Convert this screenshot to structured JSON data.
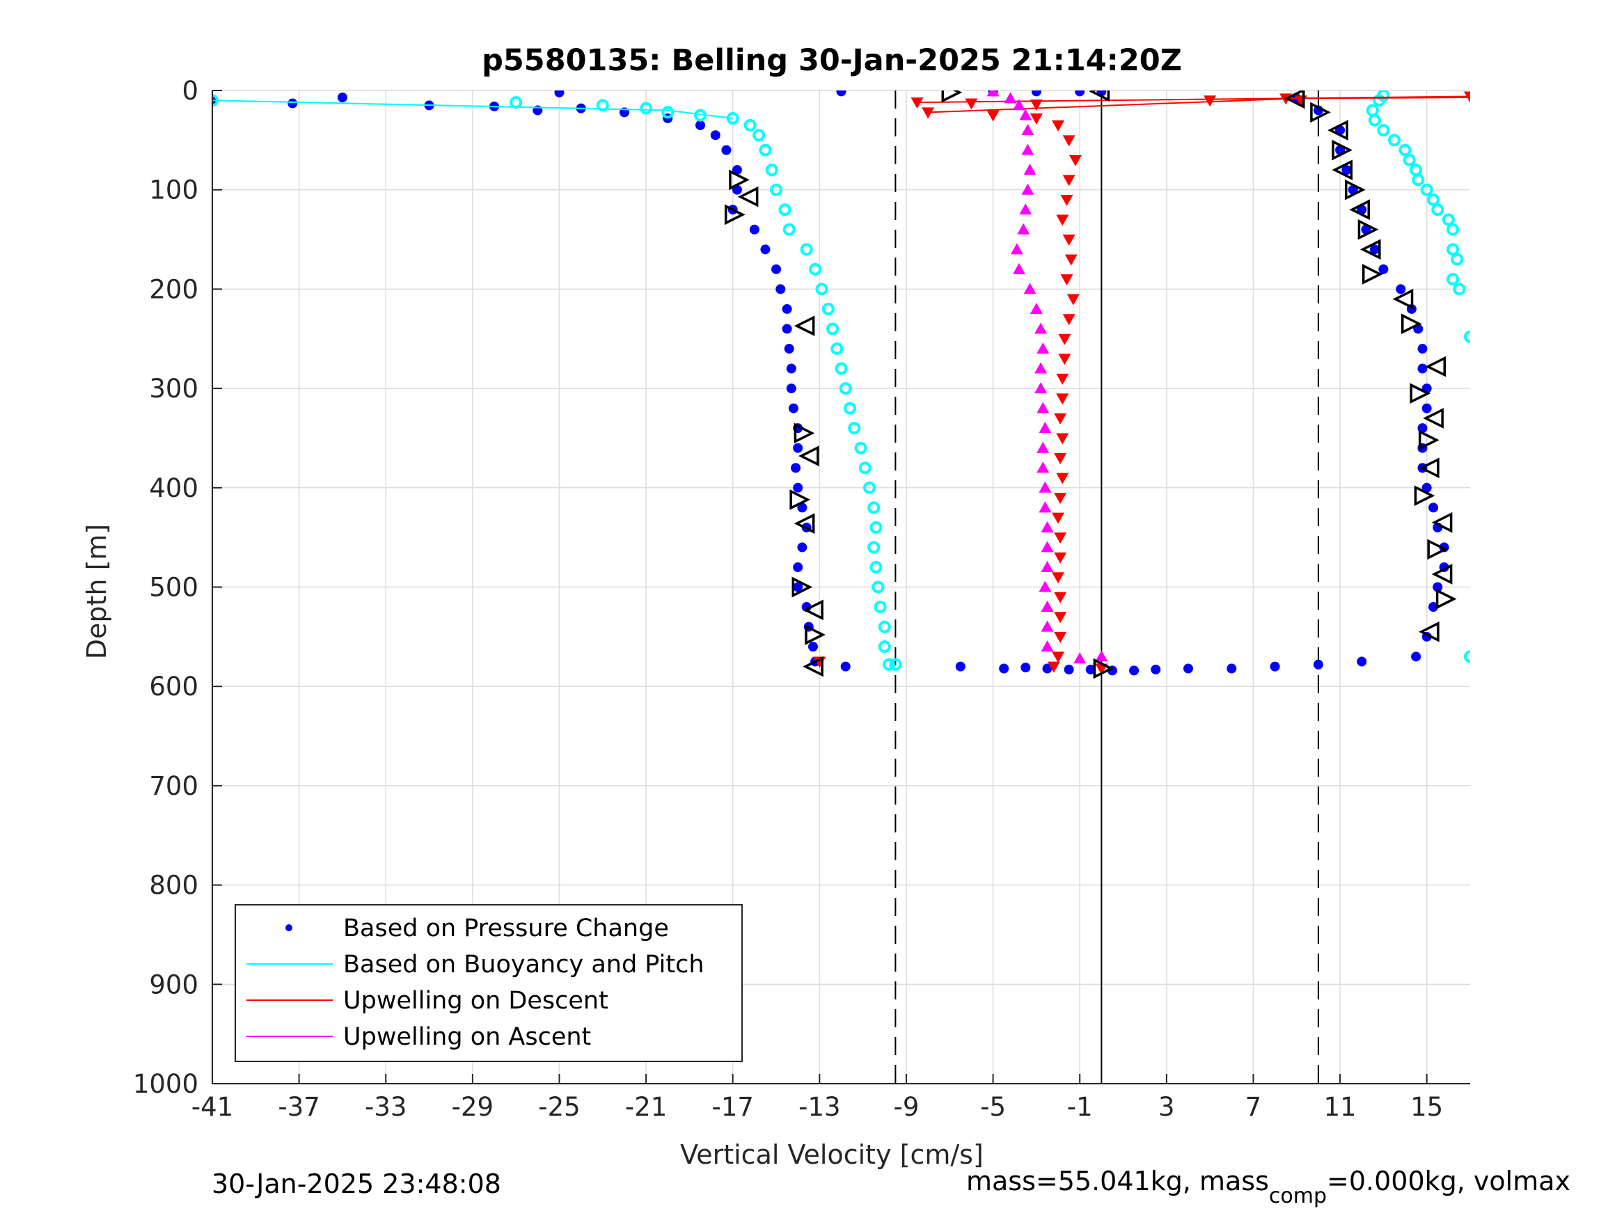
{
  "chart_data": {
    "type": "scatter",
    "title": "p5580135: Belling 30-Jan-2025 21:14:20Z",
    "xlabel": "Vertical Velocity [cm/s]",
    "ylabel": "Depth [m]",
    "xlim": [
      -41,
      17
    ],
    "ylim": [
      0,
      1000
    ],
    "y_reversed": true,
    "grid": true,
    "x_ticks": [
      "-41",
      "-37",
      "-33",
      "-29",
      "-25",
      "-21",
      "-17",
      "-13",
      "-9",
      "-5",
      "-1",
      "3",
      "7",
      "11",
      "15"
    ],
    "y_ticks": [
      "0",
      "100",
      "200",
      "300",
      "400",
      "500",
      "600",
      "700",
      "800",
      "900",
      "1000"
    ],
    "legend": {
      "position": "bottom-left",
      "entries": [
        {
          "label": "Based on Pressure Change",
          "color": "#0000ff",
          "marker": "dot"
        },
        {
          "label": "Based on Buoyancy and Pitch",
          "color": "#00ffff",
          "marker": "line"
        },
        {
          "label": "Upwelling on Descent",
          "color": "#ff0000",
          "marker": "line"
        },
        {
          "label": "Upwelling on Ascent",
          "color": "#ff00ff",
          "marker": "line"
        }
      ]
    },
    "reference_lines": {
      "dashed_x": [
        -9.5,
        10
      ],
      "solid_x": [
        0
      ]
    },
    "series": [
      {
        "name": "Based on Pressure Change (descent)",
        "color": "#0000ff",
        "points": [
          [
            -41,
            10
          ],
          [
            -37.3,
            13
          ],
          [
            -35,
            7
          ],
          [
            -31,
            15
          ],
          [
            -25,
            2
          ],
          [
            -28,
            16
          ],
          [
            -26,
            20
          ],
          [
            -24,
            18
          ],
          [
            -22,
            22
          ],
          [
            -20,
            28
          ],
          [
            -18.5,
            35
          ],
          [
            -17.8,
            45
          ],
          [
            -17.3,
            60
          ],
          [
            -16.8,
            80
          ],
          [
            -16.8,
            100
          ],
          [
            -17,
            120
          ],
          [
            -16,
            140
          ],
          [
            -15.5,
            160
          ],
          [
            -15,
            180
          ],
          [
            -14.8,
            200
          ],
          [
            -14.5,
            220
          ],
          [
            -14.5,
            240
          ],
          [
            -14.4,
            260
          ],
          [
            -14.3,
            280
          ],
          [
            -14.3,
            300
          ],
          [
            -14.2,
            320
          ],
          [
            -14,
            340
          ],
          [
            -14,
            360
          ],
          [
            -14.1,
            380
          ],
          [
            -14,
            400
          ],
          [
            -13.8,
            420
          ],
          [
            -13.6,
            440
          ],
          [
            -13.8,
            460
          ],
          [
            -14,
            480
          ],
          [
            -14,
            500
          ],
          [
            -13.6,
            520
          ],
          [
            -13.5,
            540
          ],
          [
            -13.3,
            560
          ],
          [
            -13.2,
            575
          ],
          [
            -11.8,
            580
          ]
        ]
      },
      {
        "name": "Based on Pressure Change (ascent)",
        "color": "#0000ff",
        "points": [
          [
            14.5,
            570
          ],
          [
            12,
            575
          ],
          [
            10,
            578
          ],
          [
            8,
            580
          ],
          [
            6,
            582
          ],
          [
            4,
            582
          ],
          [
            2.5,
            583
          ],
          [
            1.5,
            584
          ],
          [
            0.5,
            584
          ],
          [
            -0.5,
            583
          ],
          [
            -1.5,
            583
          ],
          [
            -2.5,
            582
          ],
          [
            -3.5,
            581
          ],
          [
            -4.5,
            582
          ],
          [
            -6.5,
            580
          ],
          [
            15,
            550
          ],
          [
            15.3,
            520
          ],
          [
            15.5,
            500
          ],
          [
            15.8,
            480
          ],
          [
            15.8,
            460
          ],
          [
            15.5,
            440
          ],
          [
            15.3,
            420
          ],
          [
            15,
            400
          ],
          [
            14.8,
            380
          ],
          [
            14.8,
            360
          ],
          [
            14.8,
            340
          ],
          [
            15,
            320
          ],
          [
            15,
            300
          ],
          [
            14.8,
            280
          ],
          [
            14.8,
            260
          ],
          [
            14.6,
            240
          ],
          [
            14.3,
            220
          ],
          [
            13.8,
            200
          ],
          [
            13,
            180
          ],
          [
            12.6,
            160
          ],
          [
            12.2,
            140
          ],
          [
            12,
            120
          ],
          [
            11.6,
            100
          ],
          [
            11.3,
            80
          ],
          [
            11,
            60
          ],
          [
            11,
            40
          ],
          [
            10,
            20
          ],
          [
            9,
            8
          ],
          [
            0,
            1
          ],
          [
            -1,
            1
          ],
          [
            -3,
            1
          ],
          [
            -5,
            1
          ],
          [
            -12,
            1
          ]
        ]
      },
      {
        "name": "Based on Buoyancy and Pitch (descent)",
        "color": "#00ffff",
        "points": [
          [
            -41,
            10
          ],
          [
            -27,
            12
          ],
          [
            -23,
            15
          ],
          [
            -21,
            18
          ],
          [
            -20,
            22
          ],
          [
            -18.5,
            25
          ],
          [
            -17,
            28
          ],
          [
            -16.2,
            35
          ],
          [
            -15.8,
            45
          ],
          [
            -15.5,
            60
          ],
          [
            -15.2,
            80
          ],
          [
            -15,
            100
          ],
          [
            -14.6,
            120
          ],
          [
            -14.4,
            140
          ],
          [
            -13.6,
            160
          ],
          [
            -13.2,
            180
          ],
          [
            -12.9,
            200
          ],
          [
            -12.6,
            220
          ],
          [
            -12.4,
            240
          ],
          [
            -12.2,
            260
          ],
          [
            -12,
            280
          ],
          [
            -11.8,
            300
          ],
          [
            -11.6,
            320
          ],
          [
            -11.4,
            340
          ],
          [
            -11.1,
            360
          ],
          [
            -10.9,
            380
          ],
          [
            -10.7,
            400
          ],
          [
            -10.5,
            420
          ],
          [
            -10.4,
            440
          ],
          [
            -10.5,
            460
          ],
          [
            -10.4,
            480
          ],
          [
            -10.3,
            500
          ],
          [
            -10.2,
            520
          ],
          [
            -10,
            540
          ],
          [
            -10,
            560
          ],
          [
            -9.8,
            578
          ]
        ]
      },
      {
        "name": "Based on Buoyancy and Pitch (ascent)",
        "color": "#00ffff",
        "points": [
          [
            17,
            570
          ],
          [
            -9.5,
            578
          ],
          [
            13,
            5
          ],
          [
            12.8,
            10
          ],
          [
            12.5,
            20
          ],
          [
            12.6,
            30
          ],
          [
            13,
            40
          ],
          [
            13.5,
            50
          ],
          [
            14,
            60
          ],
          [
            14.2,
            70
          ],
          [
            14.5,
            80
          ],
          [
            14.6,
            90
          ],
          [
            15,
            100
          ],
          [
            15.3,
            110
          ],
          [
            15.5,
            120
          ],
          [
            16,
            130
          ],
          [
            16.2,
            140
          ],
          [
            16.2,
            160
          ],
          [
            16.4,
            170
          ],
          [
            16.2,
            190
          ],
          [
            16.5,
            200
          ],
          [
            17,
            248
          ]
        ]
      },
      {
        "name": "Upwelling on Descent",
        "color": "#ff0000",
        "points": [
          [
            -8.5,
            12
          ],
          [
            -6,
            13
          ],
          [
            -3,
            14
          ],
          [
            5,
            10
          ],
          [
            8.5,
            8
          ],
          [
            17,
            6
          ],
          [
            -8,
            22
          ],
          [
            -5,
            25
          ],
          [
            -3,
            28
          ],
          [
            -2,
            35
          ],
          [
            -1.5,
            50
          ],
          [
            -1.2,
            70
          ],
          [
            -1.5,
            90
          ],
          [
            -1.6,
            110
          ],
          [
            -1.8,
            130
          ],
          [
            -1.5,
            150
          ],
          [
            -1.4,
            170
          ],
          [
            -1.6,
            190
          ],
          [
            -1.3,
            210
          ],
          [
            -1.5,
            230
          ],
          [
            -1.7,
            250
          ],
          [
            -1.7,
            270
          ],
          [
            -1.8,
            290
          ],
          [
            -1.8,
            310
          ],
          [
            -1.9,
            330
          ],
          [
            -1.8,
            350
          ],
          [
            -1.9,
            370
          ],
          [
            -1.8,
            390
          ],
          [
            -1.9,
            410
          ],
          [
            -2,
            430
          ],
          [
            -1.9,
            450
          ],
          [
            -1.9,
            470
          ],
          [
            -2,
            490
          ],
          [
            -1.9,
            510
          ],
          [
            -1.9,
            530
          ],
          [
            -1.9,
            550
          ],
          [
            -2,
            570
          ],
          [
            -2.2,
            580
          ],
          [
            0,
            582
          ],
          [
            -13,
            575
          ],
          [
            9.2,
            10
          ]
        ]
      },
      {
        "name": "Upwelling on Ascent",
        "color": "#ff00ff",
        "points": [
          [
            -5,
            1
          ],
          [
            -4.2,
            8
          ],
          [
            -3.8,
            15
          ],
          [
            -3.5,
            25
          ],
          [
            -3.4,
            40
          ],
          [
            -3.4,
            60
          ],
          [
            -3.3,
            80
          ],
          [
            -3.4,
            100
          ],
          [
            -3.5,
            120
          ],
          [
            -3.6,
            140
          ],
          [
            -3.9,
            160
          ],
          [
            -3.8,
            180
          ],
          [
            -3.3,
            200
          ],
          [
            -3.0,
            220
          ],
          [
            -2.8,
            240
          ],
          [
            -2.7,
            260
          ],
          [
            -2.8,
            280
          ],
          [
            -2.8,
            300
          ],
          [
            -2.7,
            320
          ],
          [
            -2.6,
            340
          ],
          [
            -2.7,
            360
          ],
          [
            -2.7,
            380
          ],
          [
            -2.6,
            400
          ],
          [
            -2.6,
            420
          ],
          [
            -2.5,
            440
          ],
          [
            -2.5,
            460
          ],
          [
            -2.5,
            480
          ],
          [
            -2.6,
            500
          ],
          [
            -2.5,
            520
          ],
          [
            -2.5,
            540
          ],
          [
            -2.5,
            560
          ],
          [
            -1,
            572
          ],
          [
            0,
            570
          ]
        ]
      },
      {
        "name": "Markers",
        "color": "#000000",
        "points": [
          [
            -7,
            2
          ],
          [
            0,
            1
          ],
          [
            -16.8,
            90
          ],
          [
            -16.2,
            107
          ],
          [
            -17,
            125
          ],
          [
            -13.6,
            237
          ],
          [
            -13.8,
            345
          ],
          [
            -13.4,
            368
          ],
          [
            -14,
            412
          ],
          [
            -13.6,
            436
          ],
          [
            -13.9,
            500
          ],
          [
            -13.2,
            523
          ],
          [
            -13.3,
            548
          ],
          [
            -13.2,
            580
          ],
          [
            0,
            582
          ],
          [
            9,
            8
          ],
          [
            10,
            22
          ],
          [
            11,
            40
          ],
          [
            11,
            60
          ],
          [
            11.2,
            80
          ],
          [
            11.6,
            100
          ],
          [
            12,
            120
          ],
          [
            12.2,
            140
          ],
          [
            12.5,
            160
          ],
          [
            12.4,
            185
          ],
          [
            14,
            210
          ],
          [
            14.2,
            235
          ],
          [
            15.5,
            278
          ],
          [
            14.6,
            305
          ],
          [
            15.4,
            330
          ],
          [
            15,
            352
          ],
          [
            15.2,
            380
          ],
          [
            14.8,
            408
          ],
          [
            15.8,
            435
          ],
          [
            15.4,
            462
          ],
          [
            15.8,
            487
          ],
          [
            15.8,
            512
          ],
          [
            15.2,
            545
          ]
        ]
      }
    ]
  },
  "footer": {
    "timestamp": "30-Jan-2025 23:48:08",
    "mass_prefix": "mass=55.041kg, mass",
    "mass_sub": "comp",
    "mass_suffix": "=0.000kg, volmax"
  }
}
